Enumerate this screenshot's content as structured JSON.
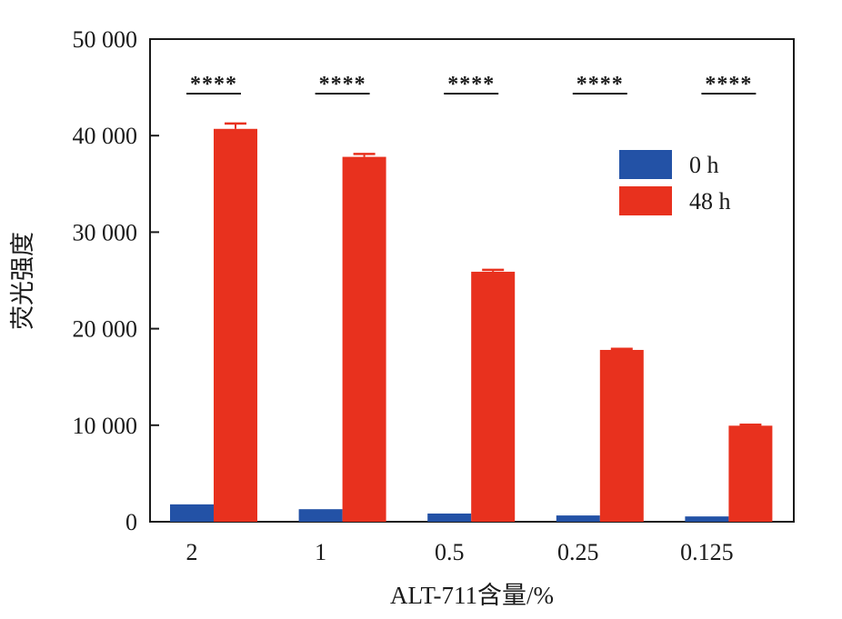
{
  "chart_data": {
    "type": "bar",
    "title": "",
    "xlabel": "ALT-711含量/%",
    "ylabel": "荧光强度",
    "categories": [
      "2",
      "1",
      "0.5",
      "0.25",
      "0.125"
    ],
    "ylim": [
      0,
      50000
    ],
    "yticks": [
      0,
      10000,
      20000,
      30000,
      40000,
      50000
    ],
    "ytick_labels": [
      "0",
      "10 000",
      "20 000",
      "30 000",
      "40 000",
      "50 000"
    ],
    "grid": false,
    "legend_position": "top-right",
    "series": [
      {
        "name": "0 h",
        "color": "#2352a6",
        "values": [
          1800,
          1300,
          850,
          650,
          550
        ],
        "errors": [
          0,
          0,
          0,
          0,
          0
        ]
      },
      {
        "name": "48 h",
        "color": "#e8311e",
        "values": [
          40700,
          37800,
          25900,
          17800,
          9950
        ],
        "errors": [
          550,
          300,
          200,
          120,
          100
        ]
      }
    ],
    "annotations": [
      "****",
      "****",
      "****",
      "****",
      "****"
    ]
  }
}
